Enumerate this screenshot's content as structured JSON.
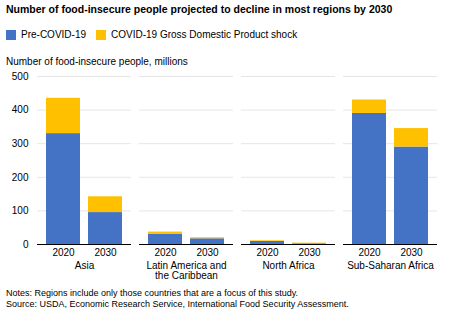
{
  "chart_data": {
    "type": "bar",
    "stacked": true,
    "title": "Number of food-insecure people projected to decline in most regions by 2030",
    "ylabel": "Number of food-insecure people, millions",
    "groups": [
      "Asia",
      "Latin America and\nthe Caribbean",
      "North Africa",
      "Sub-Saharan Africa"
    ],
    "categories": [
      "2020",
      "2030",
      "2020",
      "2030",
      "2020",
      "2030",
      "2020",
      "2030"
    ],
    "series": [
      {
        "name": "Pre-COVID-19",
        "color": "#4472C4",
        "values": [
          330,
          95,
          30,
          17,
          9,
          2,
          390,
          290
        ]
      },
      {
        "name": "COVID-19 Gross Domestic Product shock",
        "color": "#FFC000",
        "values": [
          105,
          47,
          7,
          3,
          2,
          2,
          40,
          55
        ]
      }
    ],
    "ylim": [
      0,
      500
    ],
    "yticks": [
      0,
      100,
      200,
      300,
      400,
      500
    ],
    "grid": true,
    "legend": "upper left",
    "notes": [
      "Notes: Regions include only those countries that are a focus of this study.",
      "Source: USDA, Economic Research Service, International Food Security Assessment."
    ]
  }
}
